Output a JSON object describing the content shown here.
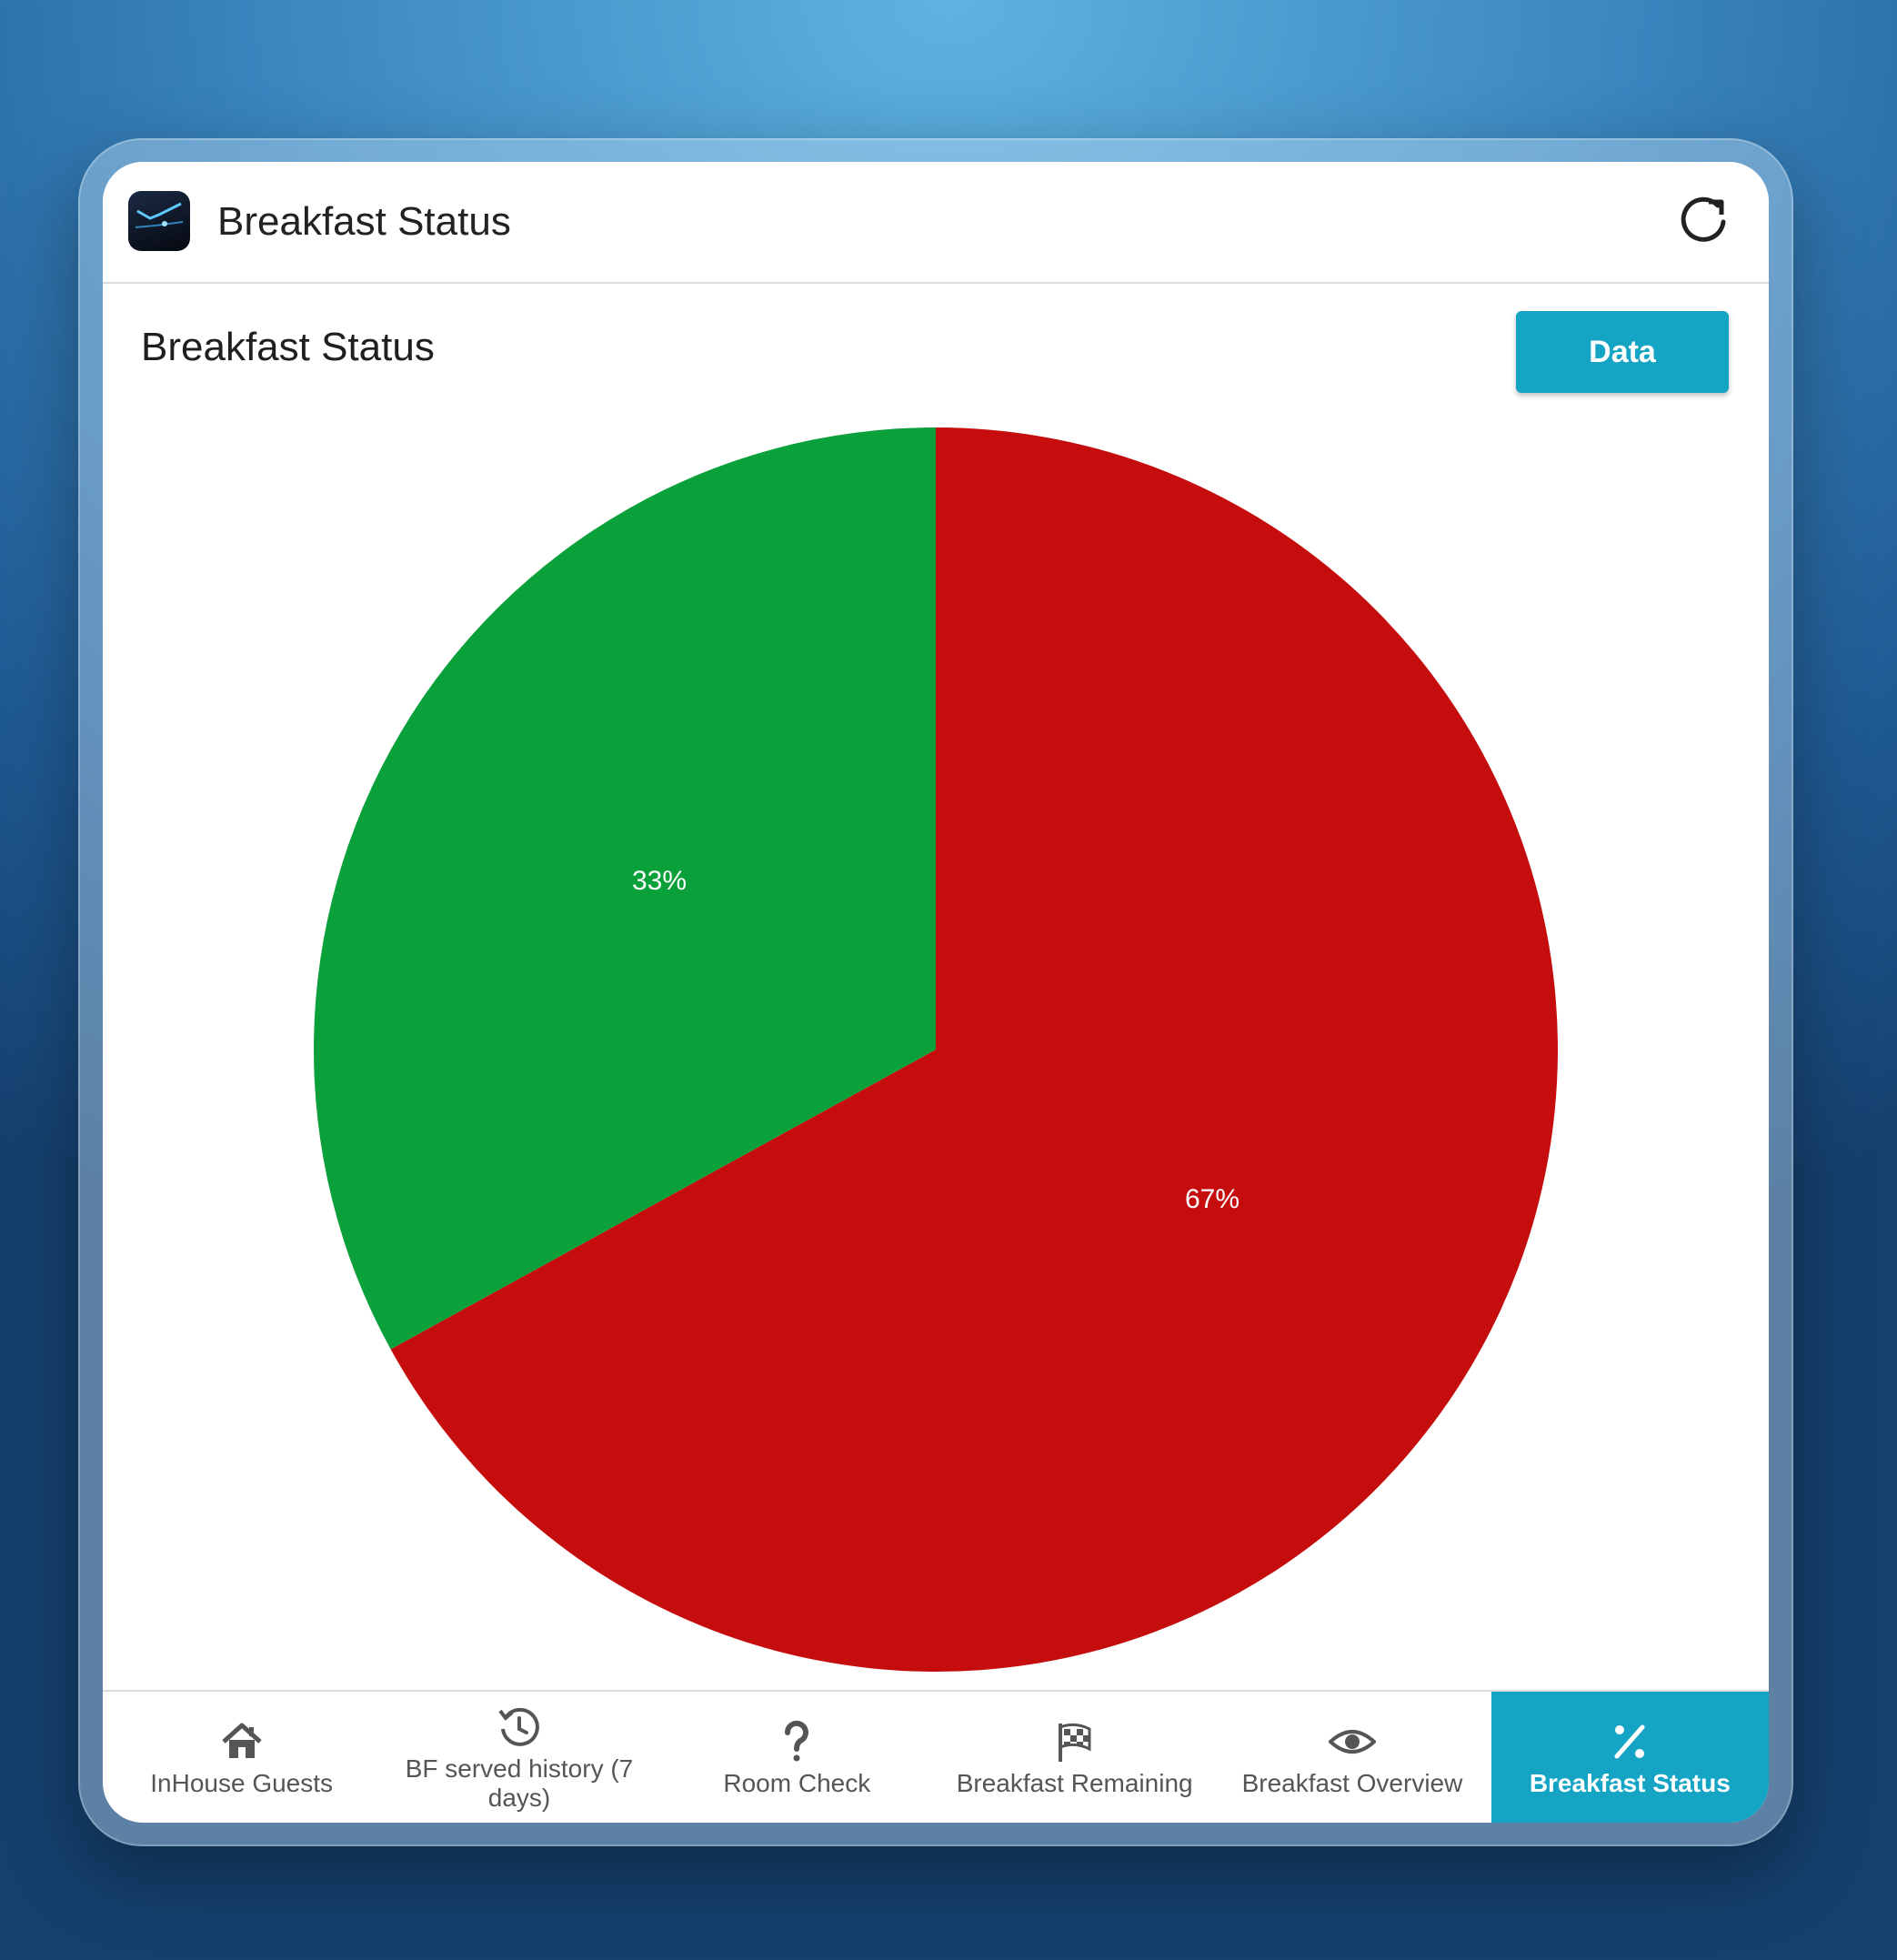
{
  "app": {
    "title": "Breakfast Status"
  },
  "section": {
    "title": "Breakfast Status",
    "data_button_label": "Data"
  },
  "colors": {
    "accent": "#15a4c4",
    "slice_green": "#0aa03a",
    "slice_red": "#c50d0d"
  },
  "chart_data": {
    "type": "pie",
    "slices": [
      {
        "label": "33%",
        "value": 33,
        "color": "#0aa03a"
      },
      {
        "label": "67%",
        "value": 67,
        "color": "#c50d0d"
      }
    ]
  },
  "bottom_nav": {
    "items": [
      {
        "label": "InHouse Guests",
        "icon": "home-icon"
      },
      {
        "label": "BF served history (7 days)",
        "icon": "history-icon"
      },
      {
        "label": "Room Check",
        "icon": "question-icon"
      },
      {
        "label": "Breakfast Remaining",
        "icon": "checkered-flag-icon"
      },
      {
        "label": "Breakfast Overview",
        "icon": "eye-icon"
      },
      {
        "label": "Breakfast Status",
        "icon": "percent-icon",
        "active": true
      }
    ]
  }
}
